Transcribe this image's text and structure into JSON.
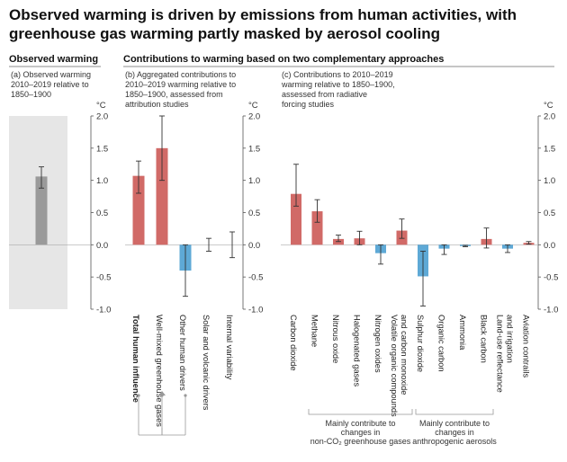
{
  "title_line1": "Observed warming is driven by emissions from human activities, with",
  "title_line2": "greenhouse gas warming partly masked by aerosol cooling",
  "section_left": "Observed warming",
  "section_right": "Contributions to warming based on two complementary approaches",
  "unit": "°C",
  "colors": {
    "warming": "#d16a67",
    "cooling": "#5ea9d6",
    "observed": "#9a9a9a",
    "shade": "#e6e6e6",
    "axis": "#555555"
  },
  "chart_data": [
    {
      "type": "bar",
      "panel": "a",
      "subtitle": [
        "(a) Observed warming",
        "2010–2019 relative to",
        "1850–1900"
      ],
      "ylim": [
        -1.0,
        2.0
      ],
      "yticks": [
        "2.0",
        "1.5",
        "1.0",
        "0.5",
        "0.0",
        "-0.5",
        "-1.0"
      ],
      "ylabel": "°C",
      "categories": [
        ""
      ],
      "values": [
        1.06
      ],
      "ranges": [
        [
          0.88,
          1.21
        ]
      ]
    },
    {
      "type": "bar",
      "panel": "b",
      "subtitle": [
        "(b) Aggregated contributions to",
        "2010–2019 warming relative to",
        "1850–1900, assessed from",
        "attribution studies"
      ],
      "ylim": [
        -1.0,
        2.0
      ],
      "yticks": [
        "2.0",
        "1.5",
        "1.0",
        "0.5",
        "0.0",
        "-0.5",
        "-1.0"
      ],
      "ylabel": "°C",
      "categories": [
        "Total human influence",
        "Well-mixed greenhouse gases",
        "Other human drivers",
        "Solar and volcanic drivers",
        "Internal variability"
      ],
      "values": [
        1.07,
        1.5,
        -0.4,
        0.0,
        0.0
      ],
      "ranges": [
        [
          0.8,
          1.3
        ],
        [
          1.0,
          2.0
        ],
        [
          -0.8,
          0.0
        ],
        [
          -0.1,
          0.1
        ],
        [
          -0.2,
          0.2
        ]
      ]
    },
    {
      "type": "bar",
      "panel": "c",
      "subtitle": [
        "(c) Contributions to 2010–2019",
        "warming relative to 1850–1900,",
        "assessed from radiative",
        "forcing studies"
      ],
      "ylim": [
        -1.0,
        2.0
      ],
      "yticks": [
        "2.0",
        "1.5",
        "1.0",
        "0.5",
        "0.0",
        "-0.5",
        "-1.0"
      ],
      "ylabel": "°C",
      "categories": [
        [
          "Carbon dioxide"
        ],
        [
          "Methane"
        ],
        [
          "Nitrous oxide"
        ],
        [
          "Halogenated gases"
        ],
        [
          "Nitrogen oxides"
        ],
        [
          "Volatile organic compounds",
          "and carbon monoxide"
        ],
        [
          "Sulphur dioxide"
        ],
        [
          "Organic carbon"
        ],
        [
          "Ammonia"
        ],
        [
          "Black carbon"
        ],
        [
          "Land-use reflectance",
          "and irrigation"
        ],
        [
          "Aviation contrails"
        ]
      ],
      "values": [
        0.79,
        0.52,
        0.09,
        0.1,
        -0.13,
        0.22,
        -0.49,
        -0.06,
        -0.02,
        0.09,
        -0.06,
        0.03
      ],
      "ranges": [
        [
          0.6,
          1.25
        ],
        [
          0.35,
          0.7
        ],
        [
          0.05,
          0.15
        ],
        [
          0.0,
          0.21
        ],
        [
          -0.3,
          0.0
        ],
        [
          0.1,
          0.4
        ],
        [
          -0.95,
          -0.1
        ],
        [
          -0.15,
          0.0
        ],
        [
          -0.03,
          -0.01
        ],
        [
          -0.05,
          0.26
        ],
        [
          -0.12,
          0.0
        ],
        [
          0.01,
          0.05
        ]
      ]
    }
  ],
  "group_labels": {
    "ghg": [
      "Mainly contribute to",
      "changes in",
      "non-CO₂ greenhouse gases"
    ],
    "aerosol": [
      "Mainly contribute to",
      "changes in",
      "anthropogenic aerosols"
    ]
  }
}
